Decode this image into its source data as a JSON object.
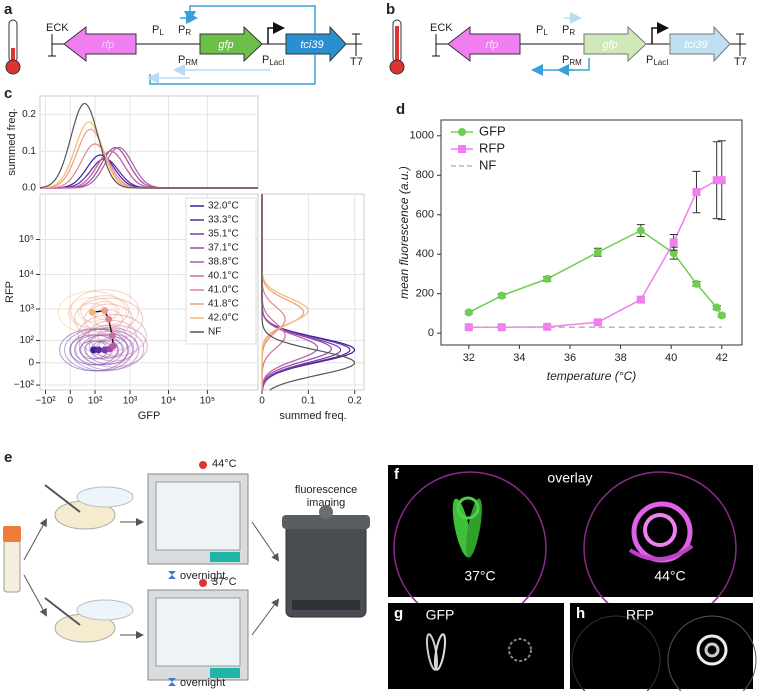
{
  "panel_a": {
    "label": "a",
    "parts": {
      "eck": "ECK",
      "rfp": "rfp",
      "pl": {
        "main": "P",
        "sub": "L"
      },
      "pr": {
        "main": "P",
        "sub": "R"
      },
      "prm": {
        "main": "P",
        "sub": "RM"
      },
      "gfp": "gfp",
      "placi": {
        "main": "P",
        "sub": "LacI"
      },
      "tci39": "tci39",
      "t7": "T7"
    }
  },
  "panel_b": {
    "label": "b",
    "parts": {
      "eck": "ECK",
      "rfp": "rfp",
      "pl": {
        "main": "P",
        "sub": "L"
      },
      "pr": {
        "main": "P",
        "sub": "R"
      },
      "prm": {
        "main": "P",
        "sub": "RM"
      },
      "gfp": "gfp",
      "placi": {
        "main": "P",
        "sub": "LacI"
      },
      "tci39": "tci39",
      "t7": "T7"
    }
  },
  "chart_data": [
    {
      "type": "flow-density",
      "label": "c",
      "xlabel": "GFP",
      "ylabel": "RFP",
      "top_ylabel": "summed freq.",
      "right_xlabel": "summed freq.",
      "xlim": [
        -150,
        2000000
      ],
      "ylim": [
        -150,
        2000000
      ],
      "xticks": [
        {
          "value": -100,
          "label": "−10²"
        },
        0,
        {
          "value": 100,
          "label": "10²"
        },
        {
          "value": 1000,
          "label": "10³"
        },
        {
          "value": 10000,
          "label": "10⁴"
        },
        {
          "value": 100000,
          "label": "10⁵"
        }
      ],
      "yticks": [
        {
          "value": -100,
          "label": "−10²"
        },
        0,
        {
          "value": 100,
          "label": "10²"
        },
        {
          "value": 1000,
          "label": "10³"
        },
        {
          "value": 10000,
          "label": "10⁴"
        },
        {
          "value": 100000,
          "label": "10⁵"
        }
      ],
      "top_ylim": [
        0,
        0.25
      ],
      "top_yticks": [
        {
          "value": 0,
          "label": "0.0"
        },
        0.1,
        0.2
      ],
      "right_xlim": [
        0,
        0.22
      ],
      "right_xticks": [
        0,
        0.1,
        0.2
      ],
      "grid": true,
      "series": [
        {
          "name": "32.0°C",
          "color": "#3b1fa0",
          "mean": [
            90,
            40
          ],
          "gfp_peak": [
            150,
            0.09
          ],
          "rfp_peak": [
            40,
            0.2
          ]
        },
        {
          "name": "33.3°C",
          "color": "#5a2ba6",
          "mean": [
            130,
            40
          ],
          "gfp_peak": [
            200,
            0.08
          ],
          "rfp_peak": [
            40,
            0.19
          ]
        },
        {
          "name": "35.1°C",
          "color": "#7a3aa8",
          "mean": [
            200,
            40
          ],
          "gfp_peak": [
            300,
            0.1
          ],
          "rfp_peak": [
            40,
            0.17
          ]
        },
        {
          "name": "37.1°C",
          "color": "#9a4aa8",
          "mean": [
            280,
            45
          ],
          "gfp_peak": [
            400,
            0.11
          ],
          "rfp_peak": [
            45,
            0.15
          ]
        },
        {
          "name": "38.8°C",
          "color": "#b659a6",
          "mean": [
            350,
            60
          ],
          "gfp_peak": [
            500,
            0.11
          ],
          "rfp_peak": [
            50,
            0.12
          ]
        },
        {
          "name": "40.1°C",
          "color": "#cf6d9c",
          "mean": [
            330,
            150
          ],
          "gfp_peak": [
            300,
            0.1
          ],
          "rfp_peak": [
            150,
            0.05
          ]
        },
        {
          "name": "41.0°C",
          "color": "#e3848c",
          "mean": [
            260,
            500
          ],
          "gfp_peak": [
            100,
            0.12
          ],
          "rfp_peak": [
            500,
            0.05
          ]
        },
        {
          "name": "41.8°C",
          "color": "#f09e7c",
          "mean": [
            200,
            900
          ],
          "gfp_peak": [
            70,
            0.16
          ],
          "rfp_peak": [
            800,
            0.09
          ]
        },
        {
          "name": "42.0°C",
          "color": "#f4bb6e",
          "mean": [
            80,
            800
          ],
          "gfp_peak": [
            60,
            0.18
          ],
          "rfp_peak": [
            900,
            0.1
          ]
        },
        {
          "name": "NF",
          "color": "#555555",
          "gfp_peak": [
            40,
            0.23
          ],
          "rfp_peak": [
            0,
            0.2
          ]
        }
      ]
    },
    {
      "type": "line",
      "label": "d",
      "xlabel": "temperature (°C)",
      "ylabel": "mean fluorescence (a.u.)",
      "xlim": [
        30.9,
        42.8
      ],
      "ylim": [
        -60,
        1080
      ],
      "xticks": [
        32,
        34,
        36,
        38,
        40,
        42
      ],
      "yticks": [
        0,
        200,
        400,
        600,
        800,
        1000
      ],
      "legend": "upper left",
      "series": [
        {
          "name": "GFP",
          "color": "#6ccf4f",
          "marker": "circle",
          "x": [
            32,
            33.3,
            35.1,
            37.1,
            38.8,
            40.1,
            41.0,
            41.8,
            42.0
          ],
          "values": [
            105,
            190,
            275,
            410,
            520,
            405,
            250,
            130,
            90
          ],
          "errors": [
            8,
            10,
            12,
            20,
            30,
            30,
            12,
            10,
            8
          ]
        },
        {
          "name": "RFP",
          "color": "#f07ef0",
          "marker": "square",
          "x": [
            32,
            33.3,
            35.1,
            37.1,
            38.8,
            40.1,
            41.0,
            41.8,
            42.0
          ],
          "values": [
            30,
            30,
            32,
            55,
            170,
            460,
            715,
            775,
            775
          ],
          "errors": [
            5,
            5,
            5,
            8,
            12,
            40,
            105,
            195,
            200
          ]
        },
        {
          "name": "NF",
          "color": "#d9a8a8",
          "linestyle": "dashed",
          "x": [
            32,
            42
          ],
          "values": [
            30,
            30
          ]
        }
      ]
    }
  ],
  "panel_e": {
    "label": "e",
    "top_temp": "44°C",
    "top_time": "overnight",
    "bottom_temp": "37°C",
    "bottom_time": "overnight",
    "imager": [
      "fluorescence",
      "imaging"
    ]
  },
  "panel_f": {
    "label": "f",
    "title": "overlay",
    "left": "37°C",
    "right": "44°C"
  },
  "panel_g": {
    "label": "g",
    "title": "GFP"
  },
  "panel_h": {
    "label": "h",
    "title": "RFP"
  }
}
